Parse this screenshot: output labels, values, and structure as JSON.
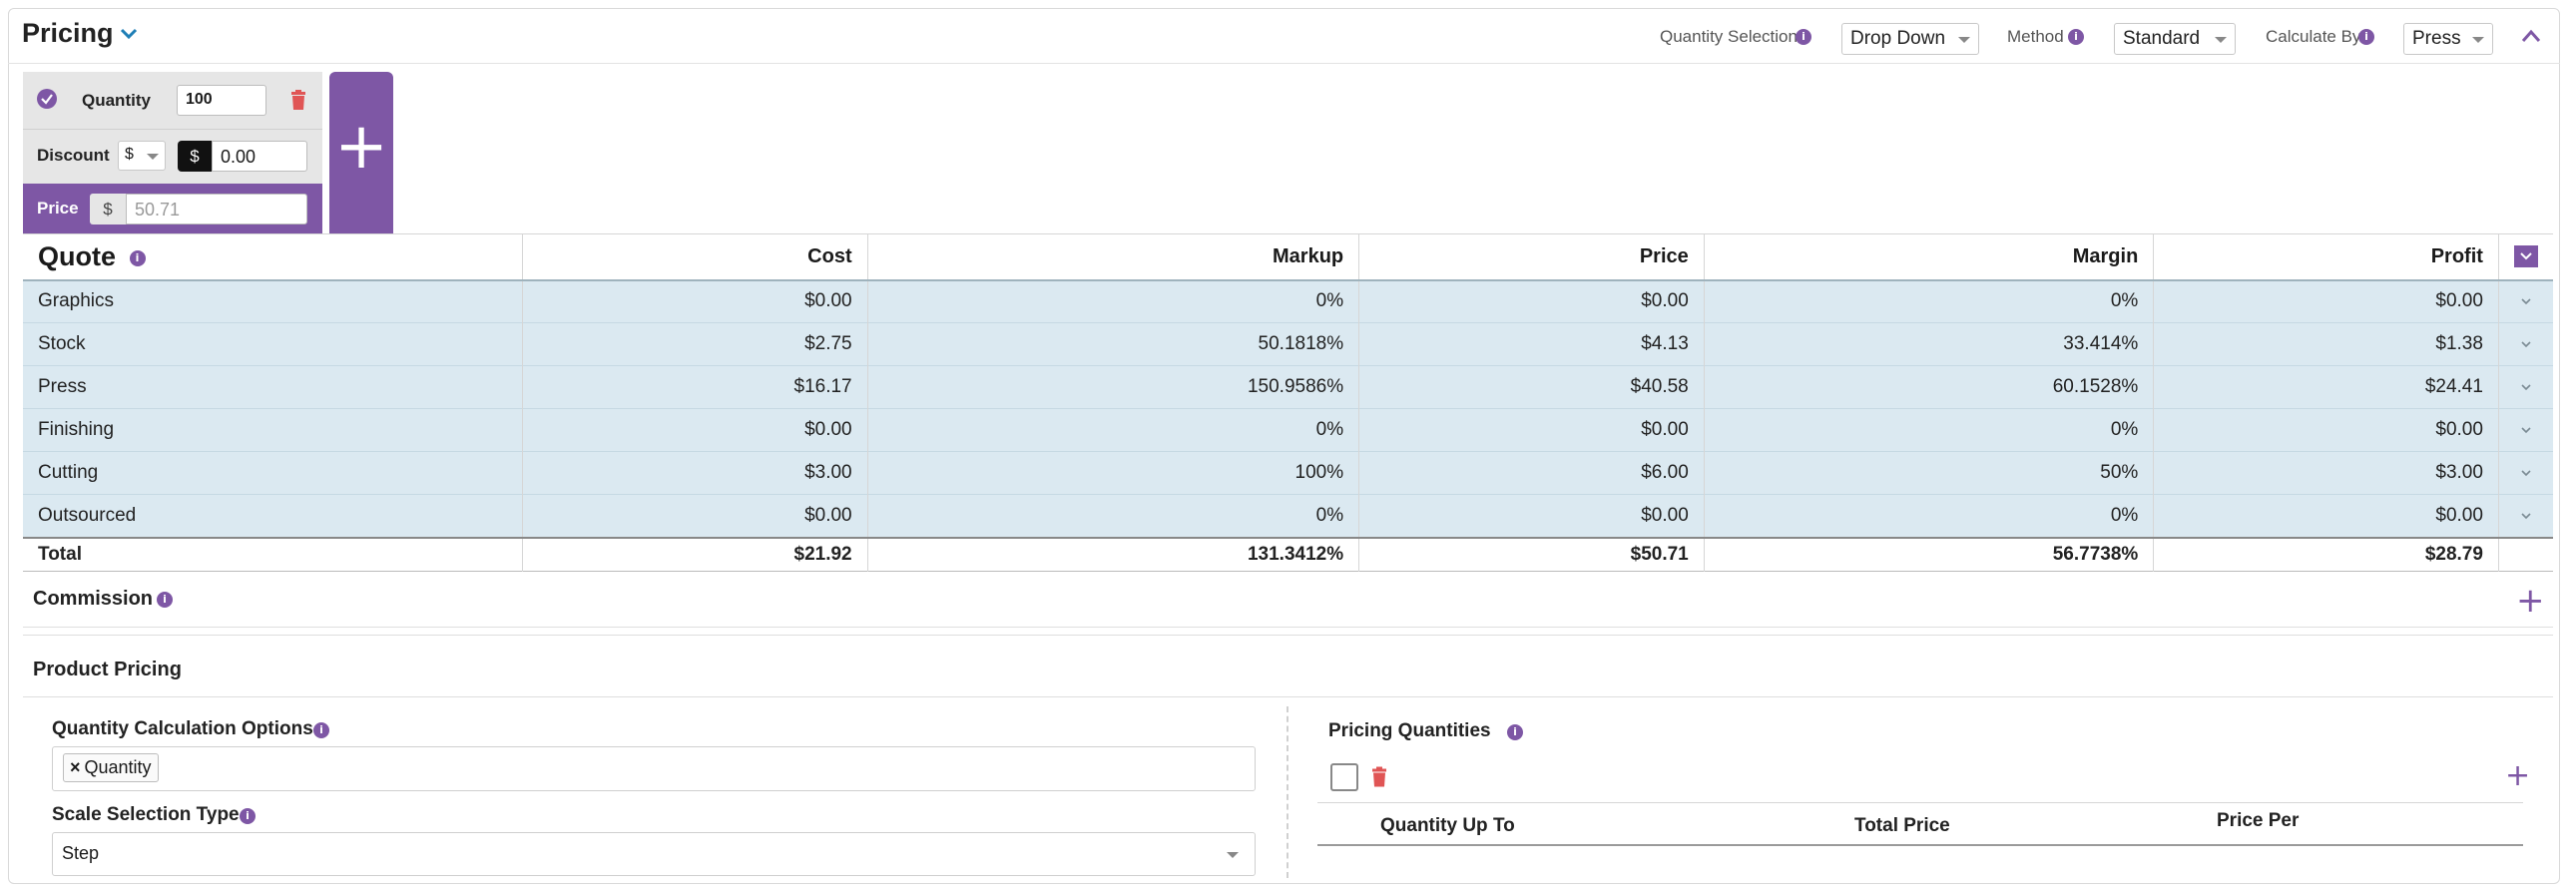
{
  "header": {
    "title": "Pricing",
    "quantity_selection_label": "Quantity Selection",
    "quantity_selection_value": "Drop Down",
    "method_label": "Method",
    "method_value": "Standard",
    "calculate_by_label": "Calculate By",
    "calculate_by_value": "Press"
  },
  "quantity_card": {
    "quantity_label": "Quantity",
    "quantity_value": "100",
    "discount_label": "Discount",
    "discount_type": "$",
    "discount_symbol": "$",
    "discount_value": "0.00",
    "price_label": "Price",
    "price_symbol": "$",
    "price_placeholder": "50.71",
    "add_symbol": "+"
  },
  "quote": {
    "title": "Quote",
    "columns": [
      "Cost",
      "Markup",
      "Price",
      "Margin",
      "Profit"
    ],
    "rows": [
      {
        "name": "Graphics",
        "cost": "$0.00",
        "markup": "0%",
        "price": "$0.00",
        "margin": "0%",
        "profit": "$0.00"
      },
      {
        "name": "Stock",
        "cost": "$2.75",
        "markup": "50.1818%",
        "price": "$4.13",
        "margin": "33.414%",
        "profit": "$1.38"
      },
      {
        "name": "Press",
        "cost": "$16.17",
        "markup": "150.9586%",
        "price": "$40.58",
        "margin": "60.1528%",
        "profit": "$24.41"
      },
      {
        "name": "Finishing",
        "cost": "$0.00",
        "markup": "0%",
        "price": "$0.00",
        "margin": "0%",
        "profit": "$0.00"
      },
      {
        "name": "Cutting",
        "cost": "$3.00",
        "markup": "100%",
        "price": "$6.00",
        "margin": "50%",
        "profit": "$3.00"
      },
      {
        "name": "Outsourced",
        "cost": "$0.00",
        "markup": "0%",
        "price": "$0.00",
        "margin": "0%",
        "profit": "$0.00"
      }
    ],
    "total": {
      "name": "Total",
      "cost": "$21.92",
      "markup": "131.3412%",
      "price": "$50.71",
      "margin": "56.7738%",
      "profit": "$28.79"
    }
  },
  "commission": {
    "title": "Commission",
    "add_symbol": "+"
  },
  "product_pricing": {
    "title": "Product Pricing",
    "quantity_calc_label": "Quantity Calculation Options",
    "quantity_calc_tag": "Quantity",
    "tag_remove": "×",
    "scale_type_label": "Scale Selection Type",
    "scale_type_value": "Step",
    "pricing_quantities_label": "Pricing Quantities",
    "add_symbol": "+",
    "columns": [
      "Quantity Up To",
      "Total Price",
      "Price Per"
    ]
  },
  "colors": {
    "accent": "#7e57a5",
    "row_bg": "#dbe9f1",
    "delete": "#e05555",
    "header_chevron": "#1f7fb6"
  }
}
